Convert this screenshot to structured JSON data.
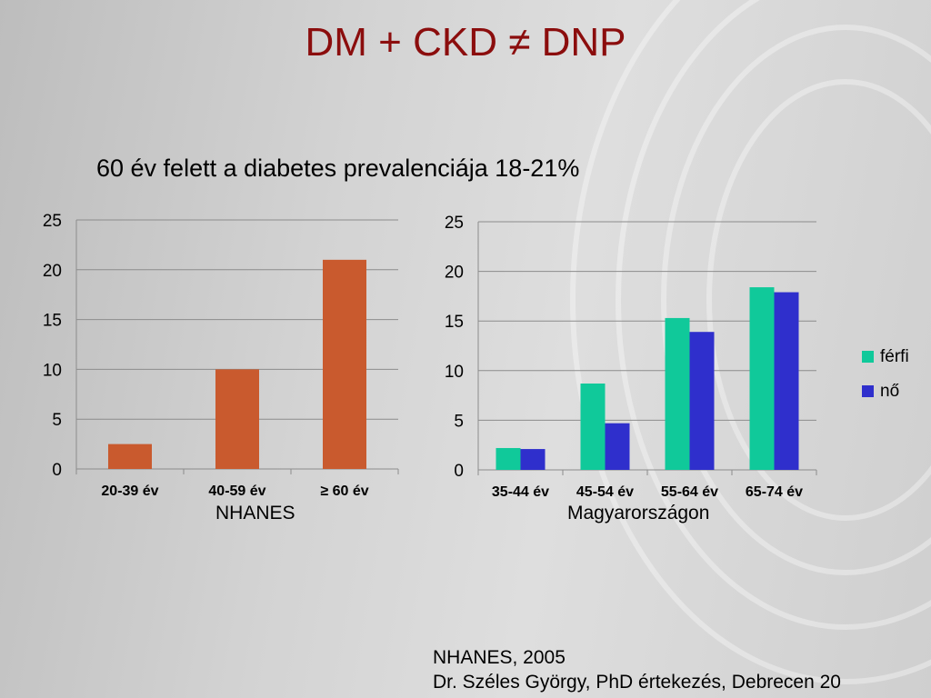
{
  "slide": {
    "title": "DM + CKD ≠ DNP",
    "subtitle": "60 év felett a diabetes prevalenciája 18-21%",
    "left_caption": "NHANES",
    "right_caption": "Magyarországon",
    "source_line1": "NHANES, 2005",
    "source_line2": "Dr. Széles György, PhD értekezés, Debrecen 20"
  },
  "chart_data": [
    {
      "type": "bar",
      "categories": [
        "20-39 év",
        "40-59 év",
        "≥ 60 év"
      ],
      "values": [
        2.5,
        10,
        21
      ],
      "ylim": [
        0,
        25
      ],
      "yticks": [
        0,
        5,
        10,
        15,
        20,
        25
      ],
      "grid": true,
      "color": "#c95a2e"
    },
    {
      "type": "bar",
      "categories": [
        "35-44 év",
        "45-54 év",
        "55-64 év",
        "65-74 év"
      ],
      "series": [
        {
          "name": "férfi",
          "values": [
            2.2,
            8.7,
            15.3,
            18.4
          ],
          "color": "#10c99a"
        },
        {
          "name": "nő",
          "values": [
            2.1,
            4.7,
            13.9,
            17.9
          ],
          "color": "#2f2fcc"
        }
      ],
      "ylim": [
        0,
        25
      ],
      "yticks": [
        0,
        5,
        10,
        15,
        20,
        25
      ],
      "grid": true,
      "legend": "right"
    }
  ]
}
